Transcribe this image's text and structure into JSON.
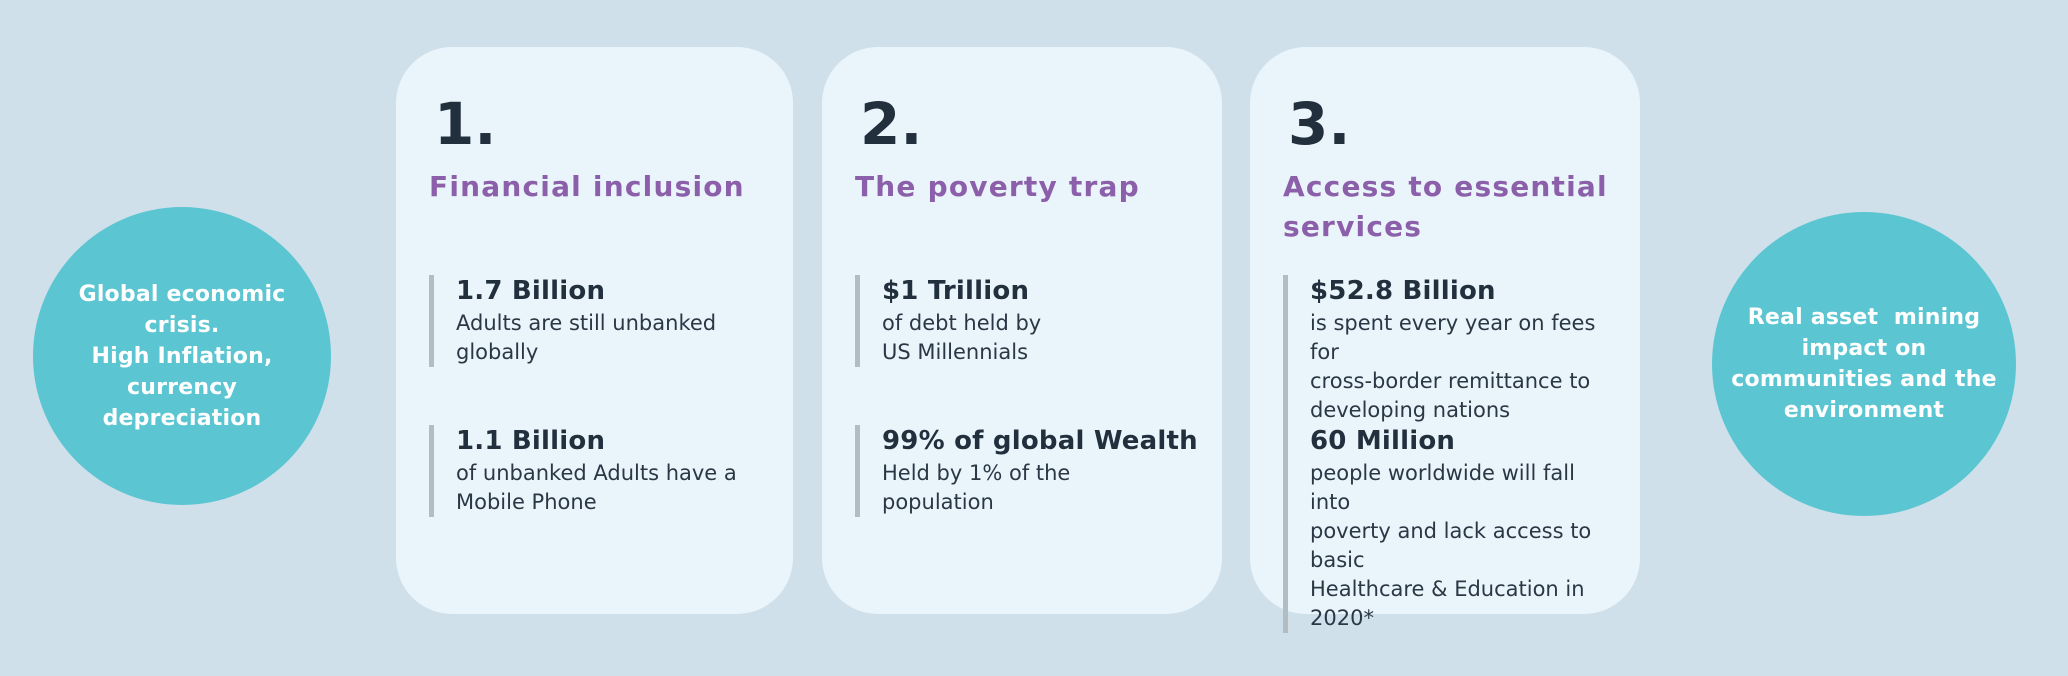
{
  "colors": {
    "page_background": "#cfe0eb",
    "card_background": "#eaf4fb",
    "circle_teal": "#5bc6d2",
    "heading_purple": "#8b5fa9",
    "text_dark": "#22303e",
    "accent_bar_gray": "#b2bcc3"
  },
  "left_circle": {
    "text": "Global economic\ncrisis.\nHigh Inflation,\ncurrency\ndepreciation"
  },
  "right_circle": {
    "text": "Real asset  mining\nimpact on\ncommunities and the\nenvironment"
  },
  "cards": [
    {
      "number": "1.",
      "title": "Financial inclusion",
      "stats": [
        {
          "value": "1.7 Billion",
          "description": "Adults are still unbanked\nglobally"
        },
        {
          "value": "1.1 Billion",
          "description": "of unbanked Adults have a\nMobile Phone"
        }
      ]
    },
    {
      "number": "2.",
      "title": "The poverty trap",
      "stats": [
        {
          "value": "$1 Trillion",
          "description": "of debt held by\nUS Millennials"
        },
        {
          "value": "99% of global Wealth",
          "description": "Held by 1% of the\npopulation"
        }
      ]
    },
    {
      "number": "3.",
      "title": "Access to essential\nservices",
      "stats": [
        {
          "value": "$52.8 Billion",
          "description": "is spent every year on fees for\ncross-border remittance to\ndeveloping nations"
        },
        {
          "value": "60 Million",
          "description": "people worldwide will fall into\npoverty and lack access to basic\nHealthcare & Education in 2020*"
        }
      ]
    }
  ]
}
